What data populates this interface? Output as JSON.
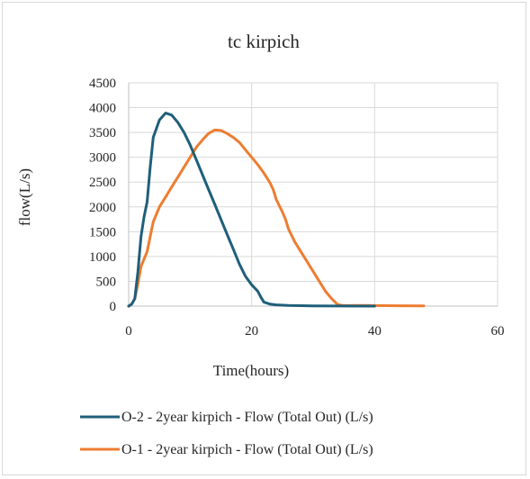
{
  "chart_data": {
    "type": "line",
    "title": "tc kirpich",
    "xlabel": "Time(hours)",
    "ylabel": "flow(L/s)",
    "xlim": [
      0,
      60
    ],
    "ylim": [
      0,
      4500
    ],
    "x_ticks": [
      0,
      20,
      40,
      60
    ],
    "y_ticks": [
      0,
      500,
      1000,
      1500,
      2000,
      2500,
      3000,
      3500,
      4000,
      4500
    ],
    "grid": "major gridlines on both axes",
    "legend_position": "bottom",
    "series": [
      {
        "name": "O-2 - 2year kirpich - Flow (Total Out) (L/s)",
        "color": "#1f5f7a",
        "points": [
          [
            0,
            0
          ],
          [
            0.5,
            40
          ],
          [
            1,
            150
          ],
          [
            1.5,
            700
          ],
          [
            2,
            1400
          ],
          [
            2.5,
            1800
          ],
          [
            3,
            2100
          ],
          [
            3.5,
            2800
          ],
          [
            4,
            3400
          ],
          [
            5,
            3750
          ],
          [
            6,
            3890
          ],
          [
            7,
            3850
          ],
          [
            8,
            3700
          ],
          [
            9,
            3500
          ],
          [
            10,
            3250
          ],
          [
            11,
            2950
          ],
          [
            12,
            2650
          ],
          [
            13,
            2350
          ],
          [
            14,
            2050
          ],
          [
            15,
            1750
          ],
          [
            16,
            1450
          ],
          [
            17,
            1150
          ],
          [
            18,
            850
          ],
          [
            19,
            600
          ],
          [
            20,
            430
          ],
          [
            21,
            300
          ],
          [
            21.5,
            180
          ],
          [
            22,
            80
          ],
          [
            23,
            40
          ],
          [
            24,
            25
          ],
          [
            26,
            12
          ],
          [
            30,
            5
          ],
          [
            35,
            2
          ],
          [
            40,
            0
          ]
        ]
      },
      {
        "name": "O-1 - 2year kirpich - Flow (Total Out) (L/s)",
        "color": "#ed7d31",
        "points": [
          [
            0,
            0
          ],
          [
            0.5,
            40
          ],
          [
            1,
            150
          ],
          [
            1.5,
            450
          ],
          [
            2,
            800
          ],
          [
            3,
            1100
          ],
          [
            4,
            1700
          ],
          [
            5,
            2000
          ],
          [
            6,
            2200
          ],
          [
            7,
            2400
          ],
          [
            8,
            2600
          ],
          [
            9,
            2800
          ],
          [
            10,
            3000
          ],
          [
            11,
            3200
          ],
          [
            12,
            3350
          ],
          [
            13,
            3480
          ],
          [
            14,
            3550
          ],
          [
            15,
            3540
          ],
          [
            16,
            3480
          ],
          [
            17,
            3400
          ],
          [
            18,
            3300
          ],
          [
            19,
            3150
          ],
          [
            20,
            3000
          ],
          [
            21,
            2850
          ],
          [
            22,
            2680
          ],
          [
            23,
            2480
          ],
          [
            23.5,
            2350
          ],
          [
            24,
            2150
          ],
          [
            25,
            1900
          ],
          [
            25.5,
            1750
          ],
          [
            26,
            1550
          ],
          [
            27,
            1300
          ],
          [
            28,
            1100
          ],
          [
            29,
            900
          ],
          [
            30,
            700
          ],
          [
            31,
            500
          ],
          [
            32,
            300
          ],
          [
            33,
            150
          ],
          [
            34,
            30
          ],
          [
            35,
            10
          ],
          [
            38,
            15
          ],
          [
            40,
            10
          ],
          [
            44,
            8
          ],
          [
            48,
            5
          ]
        ]
      }
    ]
  }
}
